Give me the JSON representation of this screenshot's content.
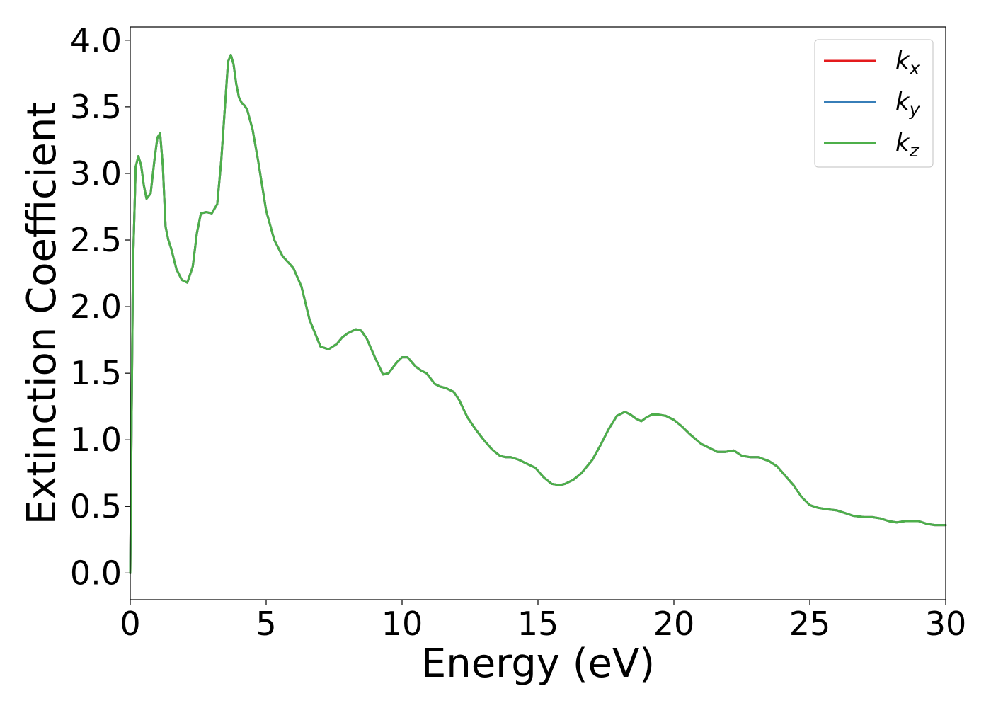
{
  "chart_data": {
    "type": "line",
    "title": "",
    "xlabel": "Energy (eV)",
    "ylabel": "Extinction Coefficient",
    "xlim": [
      0,
      30
    ],
    "ylim": [
      -0.2,
      4.1
    ],
    "xticks": [
      0,
      5,
      10,
      15,
      20,
      25,
      30
    ],
    "xtick_labels": [
      "0",
      "5",
      "10",
      "15",
      "20",
      "25",
      "30"
    ],
    "yticks": [
      0.0,
      0.5,
      1.0,
      1.5,
      2.0,
      2.5,
      3.0,
      3.5,
      4.0
    ],
    "ytick_labels": [
      "0.0",
      "0.5",
      "1.0",
      "1.5",
      "2.0",
      "2.5",
      "3.0",
      "3.5",
      "4.0"
    ],
    "grid": false,
    "legend_position": "top-right",
    "x": [
      0,
      0.1,
      0.2,
      0.3,
      0.4,
      0.5,
      0.6,
      0.75,
      0.9,
      1.0,
      1.1,
      1.2,
      1.3,
      1.4,
      1.5,
      1.7,
      1.9,
      2.1,
      2.3,
      2.45,
      2.6,
      2.8,
      3.0,
      3.2,
      3.35,
      3.5,
      3.6,
      3.7,
      3.8,
      3.9,
      4.0,
      4.1,
      4.2,
      4.3,
      4.5,
      4.7,
      5.0,
      5.3,
      5.6,
      6.0,
      6.3,
      6.6,
      7.0,
      7.3,
      7.6,
      7.8,
      8.0,
      8.3,
      8.5,
      8.7,
      9.0,
      9.3,
      9.5,
      9.8,
      10.0,
      10.2,
      10.5,
      10.7,
      10.9,
      11.2,
      11.4,
      11.6,
      11.9,
      12.1,
      12.4,
      12.7,
      13.0,
      13.3,
      13.6,
      13.8,
      14.0,
      14.3,
      14.6,
      14.9,
      15.2,
      15.5,
      15.8,
      16.0,
      16.3,
      16.6,
      17.0,
      17.3,
      17.6,
      17.9,
      18.2,
      18.4,
      18.6,
      18.8,
      19.0,
      19.2,
      19.4,
      19.7,
      20.0,
      20.3,
      20.6,
      21.0,
      21.3,
      21.6,
      21.9,
      22.2,
      22.5,
      22.8,
      23.1,
      23.5,
      23.8,
      24.1,
      24.4,
      24.7,
      25.0,
      25.3,
      25.6,
      26.0,
      26.3,
      26.6,
      27.0,
      27.3,
      27.6,
      27.9,
      28.2,
      28.5,
      28.8,
      29.0,
      29.3,
      29.6,
      30.0
    ],
    "series": [
      {
        "name": "k_x",
        "color": "#e41a1c",
        "values": [
          0.0,
          2.3,
          3.05,
          3.13,
          3.06,
          2.91,
          2.81,
          2.85,
          3.12,
          3.27,
          3.3,
          3.05,
          2.6,
          2.5,
          2.44,
          2.28,
          2.2,
          2.18,
          2.3,
          2.55,
          2.7,
          2.71,
          2.7,
          2.77,
          3.1,
          3.55,
          3.84,
          3.89,
          3.82,
          3.67,
          3.57,
          3.53,
          3.51,
          3.48,
          3.33,
          3.1,
          2.72,
          2.5,
          2.38,
          2.29,
          2.15,
          1.9,
          1.7,
          1.68,
          1.72,
          1.77,
          1.8,
          1.83,
          1.82,
          1.76,
          1.62,
          1.49,
          1.5,
          1.58,
          1.62,
          1.62,
          1.55,
          1.52,
          1.5,
          1.42,
          1.4,
          1.39,
          1.36,
          1.3,
          1.17,
          1.08,
          1.0,
          0.93,
          0.88,
          0.87,
          0.87,
          0.85,
          0.82,
          0.79,
          0.72,
          0.67,
          0.66,
          0.67,
          0.7,
          0.75,
          0.85,
          0.96,
          1.08,
          1.18,
          1.21,
          1.19,
          1.16,
          1.14,
          1.17,
          1.19,
          1.19,
          1.18,
          1.15,
          1.1,
          1.04,
          0.97,
          0.94,
          0.91,
          0.91,
          0.92,
          0.88,
          0.87,
          0.87,
          0.84,
          0.8,
          0.73,
          0.66,
          0.57,
          0.51,
          0.49,
          0.48,
          0.47,
          0.45,
          0.43,
          0.42,
          0.42,
          0.41,
          0.39,
          0.38,
          0.39,
          0.39,
          0.39,
          0.37,
          0.36,
          0.36
        ]
      },
      {
        "name": "k_y",
        "color": "#377eb8",
        "values": [
          0.0,
          2.3,
          3.05,
          3.13,
          3.06,
          2.91,
          2.81,
          2.85,
          3.12,
          3.27,
          3.3,
          3.05,
          2.6,
          2.5,
          2.44,
          2.28,
          2.2,
          2.18,
          2.3,
          2.55,
          2.7,
          2.71,
          2.7,
          2.77,
          3.1,
          3.55,
          3.84,
          3.89,
          3.82,
          3.67,
          3.57,
          3.53,
          3.51,
          3.48,
          3.33,
          3.1,
          2.72,
          2.5,
          2.38,
          2.29,
          2.15,
          1.9,
          1.7,
          1.68,
          1.72,
          1.77,
          1.8,
          1.83,
          1.82,
          1.76,
          1.62,
          1.49,
          1.5,
          1.58,
          1.62,
          1.62,
          1.55,
          1.52,
          1.5,
          1.42,
          1.4,
          1.39,
          1.36,
          1.3,
          1.17,
          1.08,
          1.0,
          0.93,
          0.88,
          0.87,
          0.87,
          0.85,
          0.82,
          0.79,
          0.72,
          0.67,
          0.66,
          0.67,
          0.7,
          0.75,
          0.85,
          0.96,
          1.08,
          1.18,
          1.21,
          1.19,
          1.16,
          1.14,
          1.17,
          1.19,
          1.19,
          1.18,
          1.15,
          1.1,
          1.04,
          0.97,
          0.94,
          0.91,
          0.91,
          0.92,
          0.88,
          0.87,
          0.87,
          0.84,
          0.8,
          0.73,
          0.66,
          0.57,
          0.51,
          0.49,
          0.48,
          0.47,
          0.45,
          0.43,
          0.42,
          0.42,
          0.41,
          0.39,
          0.38,
          0.39,
          0.39,
          0.39,
          0.37,
          0.36,
          0.36
        ]
      },
      {
        "name": "k_z",
        "color": "#4daf4a",
        "values": [
          0.0,
          2.3,
          3.05,
          3.13,
          3.06,
          2.91,
          2.81,
          2.85,
          3.12,
          3.27,
          3.3,
          3.05,
          2.6,
          2.5,
          2.44,
          2.28,
          2.2,
          2.18,
          2.3,
          2.55,
          2.7,
          2.71,
          2.7,
          2.77,
          3.1,
          3.55,
          3.84,
          3.89,
          3.82,
          3.67,
          3.57,
          3.53,
          3.51,
          3.48,
          3.33,
          3.1,
          2.72,
          2.5,
          2.38,
          2.29,
          2.15,
          1.9,
          1.7,
          1.68,
          1.72,
          1.77,
          1.8,
          1.83,
          1.82,
          1.76,
          1.62,
          1.49,
          1.5,
          1.58,
          1.62,
          1.62,
          1.55,
          1.52,
          1.5,
          1.42,
          1.4,
          1.39,
          1.36,
          1.3,
          1.17,
          1.08,
          1.0,
          0.93,
          0.88,
          0.87,
          0.87,
          0.85,
          0.82,
          0.79,
          0.72,
          0.67,
          0.66,
          0.67,
          0.7,
          0.75,
          0.85,
          0.96,
          1.08,
          1.18,
          1.21,
          1.19,
          1.16,
          1.14,
          1.17,
          1.19,
          1.19,
          1.18,
          1.15,
          1.1,
          1.04,
          0.97,
          0.94,
          0.91,
          0.91,
          0.92,
          0.88,
          0.87,
          0.87,
          0.84,
          0.8,
          0.73,
          0.66,
          0.57,
          0.51,
          0.49,
          0.48,
          0.47,
          0.45,
          0.43,
          0.42,
          0.42,
          0.41,
          0.39,
          0.38,
          0.39,
          0.39,
          0.39,
          0.37,
          0.36,
          0.36
        ]
      }
    ],
    "legend": [
      {
        "base": "k",
        "sub": "x"
      },
      {
        "base": "k",
        "sub": "y"
      },
      {
        "base": "k",
        "sub": "z"
      }
    ]
  }
}
